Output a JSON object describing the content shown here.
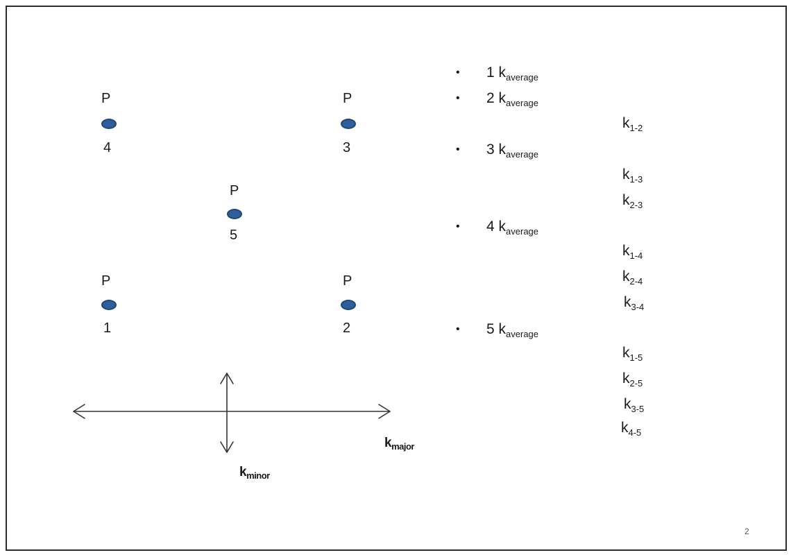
{
  "points": [
    {
      "id": "point-1",
      "top_label": "P",
      "bottom_label": "1"
    },
    {
      "id": "point-2",
      "top_label": "P",
      "bottom_label": "2"
    },
    {
      "id": "point-3",
      "top_label": "P",
      "bottom_label": "3"
    },
    {
      "id": "point-4",
      "top_label": "P",
      "bottom_label": "4"
    },
    {
      "id": "point-5",
      "top_label": "P",
      "bottom_label": "5"
    }
  ],
  "bullets": [
    {
      "bullet": "•",
      "number": "1",
      "k": "k",
      "sub": "average"
    },
    {
      "bullet": "•",
      "number": "2",
      "k": "k",
      "sub": "average"
    },
    {
      "bullet": "•",
      "number": "3",
      "k": "k",
      "sub": "average"
    },
    {
      "bullet": "•",
      "number": "4",
      "k": "k",
      "sub": "average"
    },
    {
      "bullet": "•",
      "number": "5",
      "k": "k",
      "sub": "average"
    }
  ],
  "pair_terms": [
    {
      "k": "k",
      "sub": "1-2"
    },
    {
      "k": "k",
      "sub": "1-3"
    },
    {
      "k": "k",
      "sub": "2-3"
    },
    {
      "k": "k",
      "sub": "1-4"
    },
    {
      "k": "k",
      "sub": "2-4"
    },
    {
      "k": "k",
      "sub": "3-4"
    },
    {
      "k": "k",
      "sub": "1-5"
    },
    {
      "k": "k",
      "sub": "2-5"
    },
    {
      "k": "k",
      "sub": "3-5"
    },
    {
      "k": "k",
      "sub": "4-5"
    }
  ],
  "axes": {
    "major": {
      "k": "k",
      "sub": "major"
    },
    "minor": {
      "k": "k",
      "sub": "minor"
    }
  },
  "page_number": "2",
  "colors": {
    "point_fill": "#2e5f9a",
    "point_stroke": "#1f4776",
    "frame": "#2b2b2b",
    "arrow": "#333333"
  }
}
